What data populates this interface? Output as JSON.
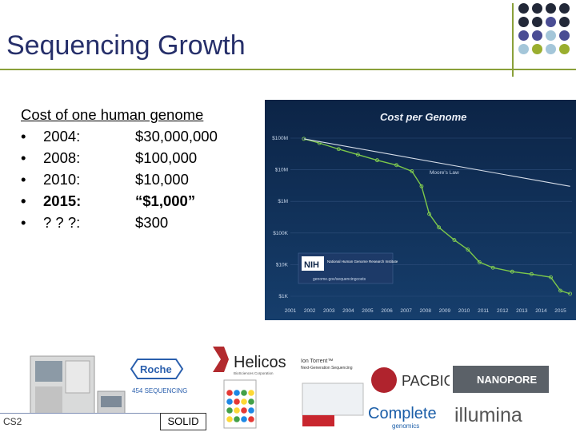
{
  "slide": {
    "title": "Sequencing Growth",
    "heading": "Cost of one human genome",
    "items": [
      {
        "year": "2004:",
        "cost": "$30,000,000",
        "bold": false
      },
      {
        "year": "2008:",
        "cost": "$100,000",
        "bold": false
      },
      {
        "year": "2010:",
        "cost": "$10,000",
        "bold": false
      },
      {
        "year": "2015:",
        "cost": "“$1,000”",
        "bold": true
      },
      {
        "year": "? ? ?:",
        "cost": "$300",
        "bold": false
      }
    ],
    "bullet": "•",
    "footer_code": "CS2",
    "solid_label": "SOLID"
  },
  "colors": {
    "title": "#262f6a",
    "accent_line": "#8aa03a",
    "dots": [
      "#222838",
      "#222838",
      "#222838",
      "#222838",
      "#222838",
      "#222838",
      "#4a4d94",
      "#222838",
      "#4a4d94",
      "#4a4d94",
      "#a4c6d9",
      "#4a4d94",
      "#a4c6d9",
      "#9aae2f",
      "#a4c6d9",
      "#9aae2f"
    ]
  },
  "logos": {
    "roche": "Roche",
    "sequencing": "454 SEQUENCING",
    "helicos": "Helicos",
    "helicos_sub": "BioSciences Corporation",
    "iontorrent": "Ion Torrent™",
    "iontorrent_sub": "Next-Generation Sequencing",
    "pacbio": "PACBIO",
    "nanopore": "NANOPORE",
    "complete": "Complete",
    "complete_sub": "genomics",
    "illumina": "illumina"
  },
  "chart_data": {
    "type": "line",
    "title": "Cost per Genome",
    "x_ticks": [
      "2001",
      "2002",
      "2003",
      "2004",
      "2005",
      "2006",
      "2007",
      "2008",
      "2009",
      "2010",
      "2011",
      "2012",
      "2013",
      "2014",
      "2015"
    ],
    "y_ticks": [
      "$100M",
      "$10M",
      "$1M",
      "$100K",
      "$10K",
      "$1K"
    ],
    "log_scale": true,
    "ylim": [
      1000,
      100000000
    ],
    "legend_note": "Moore's Law",
    "badge": "NIH",
    "badge_text": "National Human Genome Research Institute",
    "badge_sub": "genome.gov/sequencingcosts",
    "series": [
      {
        "values": [
          [
            2001.7,
            95000000
          ],
          [
            2002.5,
            70000000
          ],
          [
            2003.5,
            45000000
          ],
          [
            2004.5,
            30000000
          ],
          [
            2005.5,
            20000000
          ],
          [
            2006.5,
            14000000
          ],
          [
            2007.3,
            9000000
          ],
          [
            2007.8,
            3000000
          ],
          [
            2008.2,
            400000
          ],
          [
            2008.7,
            150000
          ],
          [
            2009.5,
            60000
          ],
          [
            2010.2,
            30000
          ],
          [
            2010.8,
            12000
          ],
          [
            2011.5,
            8000
          ],
          [
            2012.5,
            6000
          ],
          [
            2013.5,
            5000
          ],
          [
            2014.5,
            4000
          ],
          [
            2015.0,
            1500
          ],
          [
            2015.5,
            1200
          ]
        ]
      },
      {
        "values": [
          [
            2001.7,
            95000000
          ],
          [
            2015.5,
            3000000
          ]
        ]
      }
    ]
  }
}
